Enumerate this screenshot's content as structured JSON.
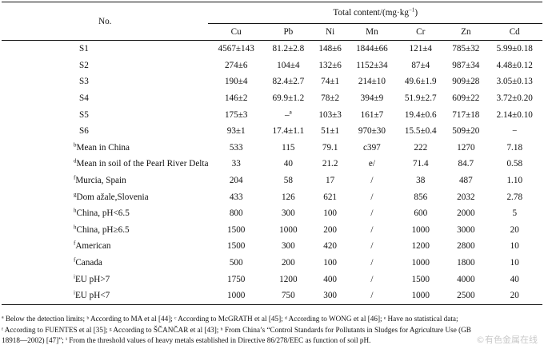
{
  "header": {
    "no_label": "No.",
    "group_label": "Total content/(mg·kg",
    "group_label_sup": "−1",
    "group_label_end": ")",
    "columns": [
      "Cu",
      "Pb",
      "Ni",
      "Mn",
      "Cr",
      "Zn",
      "Cd"
    ]
  },
  "rows": [
    {
      "sup": "",
      "label": "S1",
      "values": [
        "4567±143",
        "81.2±2.8",
        "148±6",
        "1844±66",
        "121±4",
        "785±32",
        "5.99±0.18"
      ]
    },
    {
      "sup": "",
      "label": "S2",
      "values": [
        "274±6",
        "104±4",
        "132±6",
        "1152±34",
        "87±4",
        "987±34",
        "4.48±0.12"
      ]
    },
    {
      "sup": "",
      "label": "S3",
      "values": [
        "190±4",
        "82.4±2.7",
        "74±1",
        "214±10",
        "49.6±1.9",
        "909±28",
        "3.05±0.13"
      ]
    },
    {
      "sup": "",
      "label": "S4",
      "values": [
        "146±2",
        "69.9±1.2",
        "78±2",
        "394±9",
        "51.9±2.7",
        "609±22",
        "3.72±0.20"
      ]
    },
    {
      "sup": "",
      "label": "S5",
      "values": [
        "175±3",
        "–ª",
        "103±3",
        "161±7",
        "19.4±0.6",
        "717±18",
        "2.14±0.10"
      ]
    },
    {
      "sup": "",
      "label": "S6",
      "values": [
        "93±1",
        "17.4±1.1",
        "51±1",
        "970±30",
        "15.5±0.4",
        "509±20",
        "−"
      ]
    },
    {
      "sup": "b",
      "label": "Mean in China",
      "values": [
        "533",
        "115",
        "79.1",
        "c397",
        "222",
        "1270",
        "7.18"
      ]
    },
    {
      "sup": "d",
      "label": "Mean in soil of the Pearl River Delta",
      "values": [
        "33",
        "40",
        "21.2",
        "e/",
        "71.4",
        "84.7",
        "0.58"
      ]
    },
    {
      "sup": "f",
      "label": "Murcia, Spain",
      "values": [
        "204",
        "58",
        "17",
        "/",
        "38",
        "487",
        "1.10"
      ]
    },
    {
      "sup": "g",
      "label": "Dom ažale,Slovenia",
      "values": [
        "433",
        "126",
        "621",
        "/",
        "856",
        "2032",
        "2.78"
      ]
    },
    {
      "sup": "h",
      "label": "China, pH<6.5",
      "values": [
        "800",
        "300",
        "100",
        "/",
        "600",
        "2000",
        "5"
      ]
    },
    {
      "sup": "h",
      "label": "China, pH≥6.5",
      "values": [
        "1500",
        "1000",
        "200",
        "/",
        "1000",
        "3000",
        "20"
      ]
    },
    {
      "sup": "f",
      "label": "American",
      "values": [
        "1500",
        "300",
        "420",
        "/",
        "1200",
        "2800",
        "10"
      ]
    },
    {
      "sup": "f",
      "label": "Canada",
      "values": [
        "500",
        "200",
        "100",
        "/",
        "1000",
        "1800",
        "10"
      ]
    },
    {
      "sup": "i",
      "label": "EU pH>7",
      "values": [
        "1750",
        "1200",
        "400",
        "/",
        "1500",
        "4000",
        "40"
      ]
    },
    {
      "sup": "i",
      "label": "EU pH<7",
      "values": [
        "1000",
        "750",
        "300",
        "/",
        "1000",
        "2500",
        "20"
      ]
    }
  ],
  "footnotes": [
    "ª Below the detection limits; ᵇ According to MA et al [44]; ᶜ According to McGRATH et al [45]; ᵈ According to WONG et al [46]; ᵉ Have no statistical data;",
    "ᶠ According to FUENTES et al [35]; ᵍ According to ŠČANČAR et al [43]; ʰ From China’s “Control Standards for Pollutants in Sludges for Agriculture Use (GB",
    "18918—2002) [47]”; ⁱ From the threshold values of heavy metals established in Directive 86/278/EEC as function of soil pH."
  ],
  "watermark": "©有色金属在线"
}
